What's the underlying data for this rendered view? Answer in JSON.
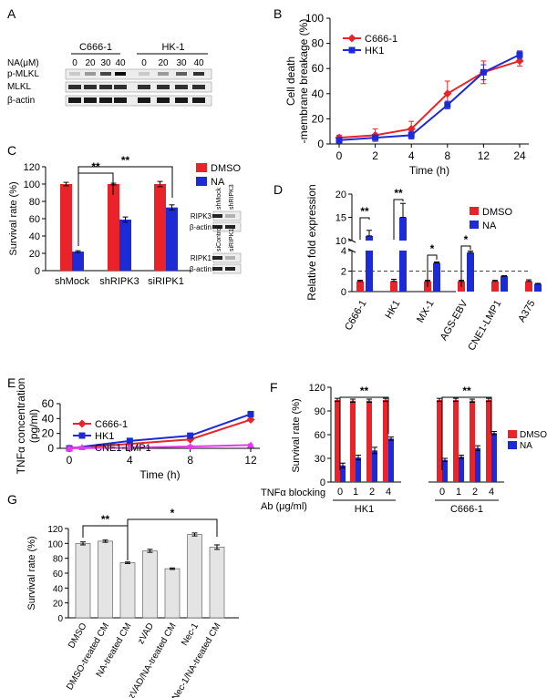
{
  "panel_letters": [
    "A",
    "B",
    "C",
    "D",
    "E",
    "F",
    "G"
  ],
  "colors": {
    "red": "#e8242a",
    "blue": "#1d2bd6",
    "magenta": "#e23ce6",
    "gray": "#e4e4e4",
    "blot_bg": "#ededed"
  },
  "blot_A": {
    "cell_lines": [
      "C666-1",
      "HK-1"
    ],
    "conc_header": "NA(μM)",
    "concentrations": [
      "0",
      "20",
      "30",
      "40",
      "0",
      "20",
      "30",
      "40"
    ],
    "rows": [
      "p-MLKL",
      "MLKL",
      "β-actin"
    ]
  },
  "blot_C": {
    "top": {
      "lanes": [
        "shMock",
        "shRIPK3"
      ],
      "rows": [
        "RIPK3",
        "β-actin"
      ]
    },
    "bottom": {
      "lanes": [
        "siControl",
        "siRIPK1"
      ],
      "rows": [
        "RIPK1",
        "β-actin"
      ]
    }
  },
  "chart_data": [
    {
      "panel": "B",
      "type": "line",
      "x": [
        "0",
        "2",
        "4",
        "8",
        "12",
        "24"
      ],
      "ylabel": "Cell death\n-membrane breakage (%)",
      "xlabel": "Time (h)",
      "ylim": [
        0,
        100
      ],
      "yticks": [
        "0",
        "20",
        "40",
        "60",
        "80",
        "100"
      ],
      "legend": "top-left",
      "series": [
        {
          "name": "C666-1",
          "color": "#e8242a",
          "marker": "diamond",
          "values": [
            5,
            7,
            12,
            40,
            57,
            66
          ],
          "errors": [
            2,
            5,
            6,
            10,
            9,
            4
          ]
        },
        {
          "name": "HK1",
          "color": "#1d2bd6",
          "marker": "square",
          "values": [
            3,
            5,
            7,
            31,
            57,
            71
          ],
          "errors": [
            1,
            1,
            3,
            3,
            6,
            3
          ]
        }
      ]
    },
    {
      "panel": "C",
      "type": "bar",
      "categories": [
        "shMock",
        "shRIPK3",
        "siRIPK1"
      ],
      "ylabel": "Survival rate (%)",
      "ylim": [
        0,
        120
      ],
      "yticks": [
        "0",
        "20",
        "40",
        "60",
        "80",
        "100",
        "120"
      ],
      "legend": "top-right",
      "series": [
        {
          "name": "DMSO",
          "color": "#e8242a",
          "values": [
            100,
            100,
            100
          ],
          "errors": [
            2,
            1,
            3
          ]
        },
        {
          "name": "NA",
          "color": "#1d2bd6",
          "values": [
            22,
            59,
            73
          ],
          "errors": [
            1,
            3,
            3
          ]
        }
      ],
      "annotations": [
        "**",
        "**"
      ]
    },
    {
      "panel": "D",
      "type": "bar",
      "categories": [
        "C666-1",
        "HK1",
        "MX-1",
        "AGS-EBV",
        "CNE1-LMP1",
        "A375"
      ],
      "ylabel": "Relative fold expression",
      "yticks_lower": [
        "0",
        "2",
        "4"
      ],
      "yticks_upper": [
        "10",
        "15",
        "20"
      ],
      "axis_break": [
        4,
        10
      ],
      "reference_line": 2,
      "legend": "top-right",
      "series": [
        {
          "name": "DMSO",
          "color": "#e8242a",
          "values": [
            1.0,
            1.0,
            1.0,
            1.0,
            1.0,
            1.0
          ],
          "errors": [
            0.1,
            0.2,
            0.1,
            0.1,
            0.1,
            0.15
          ]
        },
        {
          "name": "NA",
          "color": "#1d2bd6",
          "values": [
            11,
            15,
            2.8,
            3.8,
            1.5,
            0.75
          ],
          "errors": [
            1.2,
            3,
            0.1,
            0.15,
            0.05,
            0.05
          ]
        }
      ],
      "annotations": [
        "**",
        "**",
        "*",
        "*"
      ]
    },
    {
      "panel": "E",
      "type": "line",
      "x": [
        "0",
        "4",
        "8",
        "12"
      ],
      "ylabel": "TNFα concentration\n(pg/ml)",
      "xlabel": "Time (h)",
      "ylim": [
        0,
        60
      ],
      "yticks": [
        "0",
        "20",
        "40",
        "60"
      ],
      "legend": "top-left",
      "series": [
        {
          "name": "C666-1",
          "color": "#e8242a",
          "marker": "diamond",
          "values": [
            0,
            6,
            12,
            38.5
          ],
          "errors": [
            1,
            1,
            2,
            1.5
          ]
        },
        {
          "name": "HK1",
          "color": "#1d2bd6",
          "marker": "square",
          "values": [
            0,
            10,
            17,
            46
          ],
          "errors": [
            2,
            2.5,
            0.5,
            0.5
          ]
        },
        {
          "name": "CNE1-LMP1",
          "color": "#e23ce6",
          "marker": "triangle",
          "values": [
            0,
            1,
            2.5,
            4.5
          ],
          "errors": [
            2,
            0.3,
            1.5,
            1.5
          ]
        }
      ]
    },
    {
      "panel": "F",
      "type": "bar",
      "groups": [
        "HK1",
        "C666-1"
      ],
      "categories": [
        "0",
        "1",
        "2",
        "4"
      ],
      "xlabel": "TNFα blocking\nAb (μg/ml)",
      "ylabel": "Survival rate (%)",
      "ylim": [
        0,
        120
      ],
      "yticks": [
        "0",
        "30",
        "60",
        "90",
        "120"
      ],
      "legend": "right",
      "series": [
        {
          "name": "DMSO",
          "color": "#e8242a",
          "group_values": [
            [
              104,
              103,
              103,
              104
            ],
            [
              104,
              104,
              103,
              104
            ]
          ],
          "errors": [
            [
              2,
              2,
              2,
              2
            ],
            [
              2,
              2,
              2,
              2
            ]
          ]
        },
        {
          "name": "NA",
          "color": "#1d2bd6",
          "group_values": [
            [
              21,
              31,
              40,
              55
            ],
            [
              28,
              32,
              43,
              62
            ]
          ],
          "errors": [
            [
              3,
              3,
              4,
              2
            ],
            [
              2,
              2,
              3,
              2
            ]
          ]
        }
      ],
      "annotations": [
        "**",
        "**"
      ]
    },
    {
      "panel": "G",
      "type": "bar",
      "categories": [
        "DMSO",
        "DMSO-treated CM",
        "NA-treated CM",
        "zVAD",
        "zVAD/NA-treated CM",
        "Nec-1",
        "Nec-1/NA-treated CM"
      ],
      "ylabel": "Survival rate (%)",
      "ylim": [
        0,
        120
      ],
      "yticks": [
        "0",
        "20",
        "40",
        "60",
        "80",
        "100",
        "120"
      ],
      "series": [
        {
          "name": "",
          "color": "#e4e4e4",
          "values": [
            100,
            103,
            74,
            90,
            66,
            112,
            95
          ],
          "errors": [
            2,
            1.5,
            1,
            2,
            1,
            2,
            3
          ]
        }
      ],
      "annotations": [
        "**",
        "*"
      ]
    }
  ]
}
